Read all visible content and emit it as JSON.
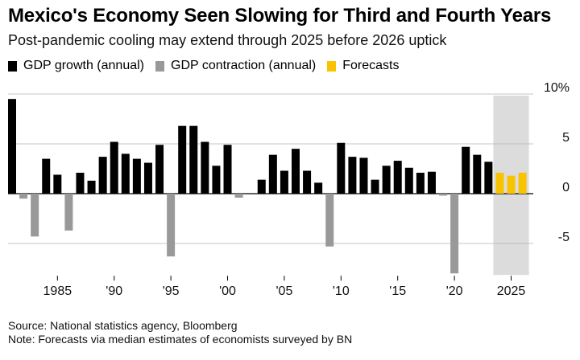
{
  "header": {
    "title": "Mexico's Economy Seen Slowing for Third and Fourth Years",
    "subtitle": "Post-pandemic cooling may extend through 2025 before 2026 uptick"
  },
  "legend": [
    {
      "label": "GDP growth (annual)",
      "color": "#000000"
    },
    {
      "label": "GDP contraction (annual)",
      "color": "#999999"
    },
    {
      "label": "Forecasts",
      "color": "#F8C300"
    }
  ],
  "chart_data": {
    "type": "bar",
    "title": "Mexico's Economy Seen Slowing for Third and Fourth Years",
    "ylabel": "%",
    "ylim": [
      -8,
      10
    ],
    "y_ticks": [
      {
        "value": 10,
        "label": "10%"
      },
      {
        "value": 5,
        "label": "5"
      },
      {
        "value": 0,
        "label": "0"
      },
      {
        "value": -5,
        "label": "-5"
      }
    ],
    "x_ticks": [
      {
        "year": 1985,
        "label": "1985"
      },
      {
        "year": 1990,
        "label": "'90"
      },
      {
        "year": 1995,
        "label": "'95"
      },
      {
        "year": 2000,
        "label": "'00"
      },
      {
        "year": 2005,
        "label": "'05"
      },
      {
        "year": 2010,
        "label": "'10"
      },
      {
        "year": 2015,
        "label": "'15"
      },
      {
        "year": 2020,
        "label": "'20"
      },
      {
        "year": 2025,
        "label": "2025"
      }
    ],
    "forecast_period": [
      2024,
      2026
    ],
    "series": [
      {
        "year": 1981,
        "value": 9.5,
        "kind": "actual"
      },
      {
        "year": 1982,
        "value": -0.5,
        "kind": "actual"
      },
      {
        "year": 1983,
        "value": -4.3,
        "kind": "actual"
      },
      {
        "year": 1984,
        "value": 3.5,
        "kind": "actual"
      },
      {
        "year": 1985,
        "value": 1.9,
        "kind": "actual"
      },
      {
        "year": 1986,
        "value": -3.7,
        "kind": "actual"
      },
      {
        "year": 1987,
        "value": 2.1,
        "kind": "actual"
      },
      {
        "year": 1988,
        "value": 1.3,
        "kind": "actual"
      },
      {
        "year": 1989,
        "value": 3.7,
        "kind": "actual"
      },
      {
        "year": 1990,
        "value": 5.2,
        "kind": "actual"
      },
      {
        "year": 1991,
        "value": 4.0,
        "kind": "actual"
      },
      {
        "year": 1992,
        "value": 3.5,
        "kind": "actual"
      },
      {
        "year": 1993,
        "value": 3.1,
        "kind": "actual"
      },
      {
        "year": 1994,
        "value": 4.9,
        "kind": "actual"
      },
      {
        "year": 1995,
        "value": -6.3,
        "kind": "actual"
      },
      {
        "year": 1996,
        "value": 6.8,
        "kind": "actual"
      },
      {
        "year": 1997,
        "value": 6.8,
        "kind": "actual"
      },
      {
        "year": 1998,
        "value": 5.2,
        "kind": "actual"
      },
      {
        "year": 1999,
        "value": 2.8,
        "kind": "actual"
      },
      {
        "year": 2000,
        "value": 4.9,
        "kind": "actual"
      },
      {
        "year": 2001,
        "value": -0.4,
        "kind": "actual"
      },
      {
        "year": 2002,
        "value": 0.0,
        "kind": "actual"
      },
      {
        "year": 2003,
        "value": 1.4,
        "kind": "actual"
      },
      {
        "year": 2004,
        "value": 3.9,
        "kind": "actual"
      },
      {
        "year": 2005,
        "value": 2.3,
        "kind": "actual"
      },
      {
        "year": 2006,
        "value": 4.5,
        "kind": "actual"
      },
      {
        "year": 2007,
        "value": 2.3,
        "kind": "actual"
      },
      {
        "year": 2008,
        "value": 1.1,
        "kind": "actual"
      },
      {
        "year": 2009,
        "value": -5.3,
        "kind": "actual"
      },
      {
        "year": 2010,
        "value": 5.1,
        "kind": "actual"
      },
      {
        "year": 2011,
        "value": 3.7,
        "kind": "actual"
      },
      {
        "year": 2012,
        "value": 3.6,
        "kind": "actual"
      },
      {
        "year": 2013,
        "value": 1.4,
        "kind": "actual"
      },
      {
        "year": 2014,
        "value": 2.8,
        "kind": "actual"
      },
      {
        "year": 2015,
        "value": 3.3,
        "kind": "actual"
      },
      {
        "year": 2016,
        "value": 2.6,
        "kind": "actual"
      },
      {
        "year": 2017,
        "value": 2.1,
        "kind": "actual"
      },
      {
        "year": 2018,
        "value": 2.2,
        "kind": "actual"
      },
      {
        "year": 2019,
        "value": -0.2,
        "kind": "actual"
      },
      {
        "year": 2020,
        "value": -8.0,
        "kind": "actual"
      },
      {
        "year": 2021,
        "value": 4.7,
        "kind": "actual"
      },
      {
        "year": 2022,
        "value": 3.9,
        "kind": "actual"
      },
      {
        "year": 2023,
        "value": 3.2,
        "kind": "actual"
      },
      {
        "year": 2024,
        "value": 2.1,
        "kind": "forecast"
      },
      {
        "year": 2025,
        "value": 1.8,
        "kind": "forecast"
      },
      {
        "year": 2026,
        "value": 2.1,
        "kind": "forecast"
      }
    ]
  },
  "footer": {
    "source": "Source: National statistics agency, Bloomberg",
    "note": "Note: Forecasts via median estimates of economists surveyed by BN"
  }
}
